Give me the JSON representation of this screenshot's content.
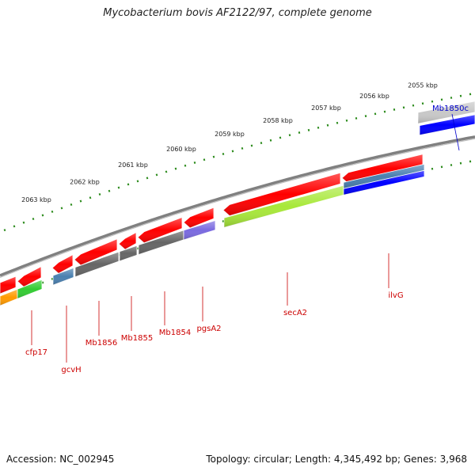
{
  "map": {
    "title": "Mycobacterium bovis AF2122/97, complete genome",
    "accession_text": "Accession: NC_002945",
    "summary_text": "Topology: circular; Length: 4,345,492 bp; Genes: 3,968"
  },
  "scale": {
    "tick_labels": [
      "2063 kbp",
      "2062 kbp",
      "2061 kbp",
      "2060 kbp",
      "2059 kbp",
      "2058 kbp",
      "2057 kbp",
      "2056 kbp",
      "2055 kbp"
    ]
  },
  "genes": [
    {
      "name": "Mb1850c",
      "color": "#0000cc"
    },
    {
      "name": "cfp17",
      "color": "#cc0000"
    },
    {
      "name": "gcvH",
      "color": "#cc0000"
    },
    {
      "name": "Mb1856",
      "color": "#cc0000"
    },
    {
      "name": "Mb1855",
      "color": "#cc0000"
    },
    {
      "name": "Mb1854",
      "color": "#cc0000"
    },
    {
      "name": "pgsA2",
      "color": "#cc0000"
    },
    {
      "name": "secA2",
      "color": "#cc0000"
    },
    {
      "name": "ilvG",
      "color": "#cc0000"
    }
  ],
  "colors": {
    "backbone": "#808080",
    "tick": "#2a8a1a",
    "gene_reverse": "#ff0000",
    "gene_forward_blue": "#0000ff",
    "gene_gray": "#c8c8c8",
    "cog_dark_gray": "#666666",
    "cog_light_green": "#a8e83a",
    "cog_steel_blue": "#4a80b0",
    "cog_slate_purple": "#7a6ae0",
    "cog_orange": "#ff9a00",
    "cog_green": "#33cc33"
  }
}
